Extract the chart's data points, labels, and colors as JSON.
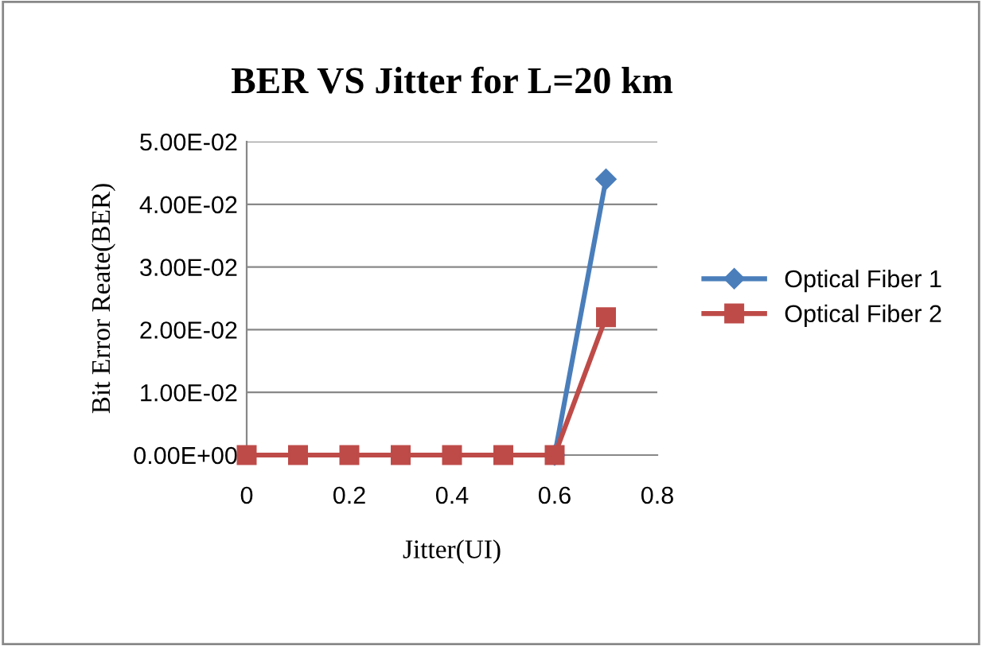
{
  "chart_data": {
    "type": "line",
    "title": "BER VS Jitter for L=20 km",
    "xlabel": "Jitter(UI)",
    "ylabel": "Bit Error Reate(BER)",
    "x": [
      0,
      0.1,
      0.2,
      0.3,
      0.4,
      0.5,
      0.6,
      0.7
    ],
    "series": [
      {
        "name": "Optical Fiber 1",
        "color": "#4a7ebb",
        "marker": "diamond",
        "values": [
          null,
          null,
          null,
          null,
          null,
          null,
          0,
          0.044
        ]
      },
      {
        "name": "Optical Fiber 2",
        "color": "#be4b48",
        "marker": "square",
        "values": [
          0,
          0,
          0,
          0,
          0,
          0,
          0,
          0.022
        ]
      }
    ],
    "xlim": [
      0,
      0.8
    ],
    "xticks": [
      0,
      0.2,
      0.4,
      0.6,
      0.8
    ],
    "ylim": [
      0,
      0.05
    ],
    "yticks": [
      {
        "value": 0,
        "label": "0.00E+00"
      },
      {
        "value": 0.01,
        "label": "1.00E-02"
      },
      {
        "value": 0.02,
        "label": "2.00E-02"
      },
      {
        "value": 0.03,
        "label": "3.00E-02"
      },
      {
        "value": 0.04,
        "label": "4.00E-02"
      },
      {
        "value": 0.05,
        "label": "5.00E-02"
      }
    ],
    "grid": "y",
    "legend": "right",
    "line_style": "solid"
  }
}
